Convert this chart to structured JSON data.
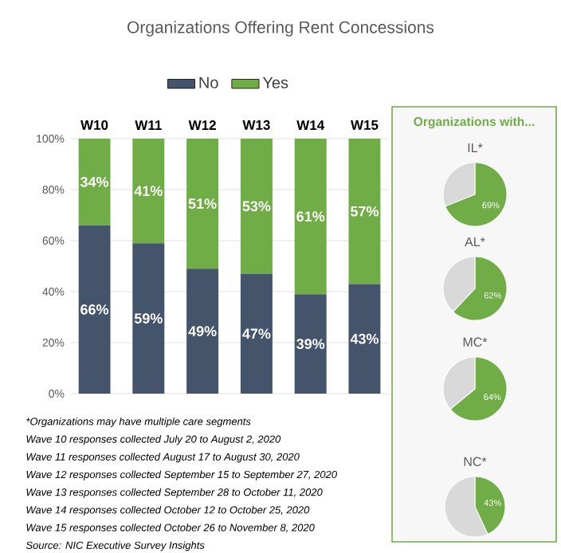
{
  "chart_data": [
    {
      "type": "bar",
      "title": "Organizations Offering Rent Concessions",
      "stacked": true,
      "categories": [
        "W10",
        "W11",
        "W12",
        "W13",
        "W14",
        "W15"
      ],
      "series": [
        {
          "name": "No",
          "color": "#44546a",
          "values": [
            66,
            59,
            49,
            47,
            39,
            43
          ],
          "value_labels": [
            "66%",
            "59%",
            "49%",
            "47%",
            "39%",
            "43%"
          ]
        },
        {
          "name": "Yes",
          "color": "#70ad47",
          "values": [
            34,
            41,
            51,
            53,
            61,
            57
          ],
          "value_labels": [
            "34%",
            "41%",
            "51%",
            "53%",
            "61%",
            "57%"
          ]
        }
      ],
      "ylim": [
        0,
        100
      ],
      "yticks": [
        {
          "value": 0,
          "label": "0%"
        },
        {
          "value": 20,
          "label": "20%"
        },
        {
          "value": 40,
          "label": "40%"
        },
        {
          "value": 60,
          "label": "60%"
        },
        {
          "value": 80,
          "label": "80%"
        },
        {
          "value": 100,
          "label": "100%"
        }
      ],
      "grid": "y",
      "legend": "top",
      "annotations": [
        "*Organizations may have multiple care segments",
        "Wave 10  responses collected July 20 to August 2, 2020",
        "Wave 11  responses collected August 17 to August 30, 2020",
        "Wave 12  responses collected September 15 to September 27, 2020",
        "Wave 13  responses collected September 28 to October 11, 2020",
        "Wave 14  responses collected October 12 to October 25, 2020",
        "Wave 15  responses collected October 26 to November 8, 2020",
        "Source: NIC Executive Survey Insights"
      ]
    },
    {
      "type": "other",
      "title": "Organizations with..."
    },
    {
      "type": "pie",
      "title": "IL*",
      "categories": [
        null,
        null
      ],
      "values": [
        69,
        31
      ],
      "colors": [
        "#70ad47",
        "#d9d9d9"
      ],
      "value_labels": [
        "69%",
        null
      ]
    },
    {
      "type": "pie",
      "title": "AL*",
      "categories": [
        null,
        null
      ],
      "values": [
        62,
        38
      ],
      "colors": [
        "#70ad47",
        "#d9d9d9"
      ],
      "value_labels": [
        "62%",
        null
      ]
    },
    {
      "type": "pie",
      "title": "MC*",
      "categories": [
        null,
        null
      ],
      "values": [
        64,
        36
      ],
      "colors": [
        "#70ad47",
        "#d9d9d9"
      ],
      "value_labels": [
        "64%",
        null
      ]
    },
    {
      "type": "pie",
      "title": "NC*",
      "categories": [
        null,
        null
      ],
      "values": [
        43,
        57
      ],
      "colors": [
        "#70ad47",
        "#d9d9d9"
      ],
      "value_labels": [
        "43%",
        null
      ]
    }
  ]
}
